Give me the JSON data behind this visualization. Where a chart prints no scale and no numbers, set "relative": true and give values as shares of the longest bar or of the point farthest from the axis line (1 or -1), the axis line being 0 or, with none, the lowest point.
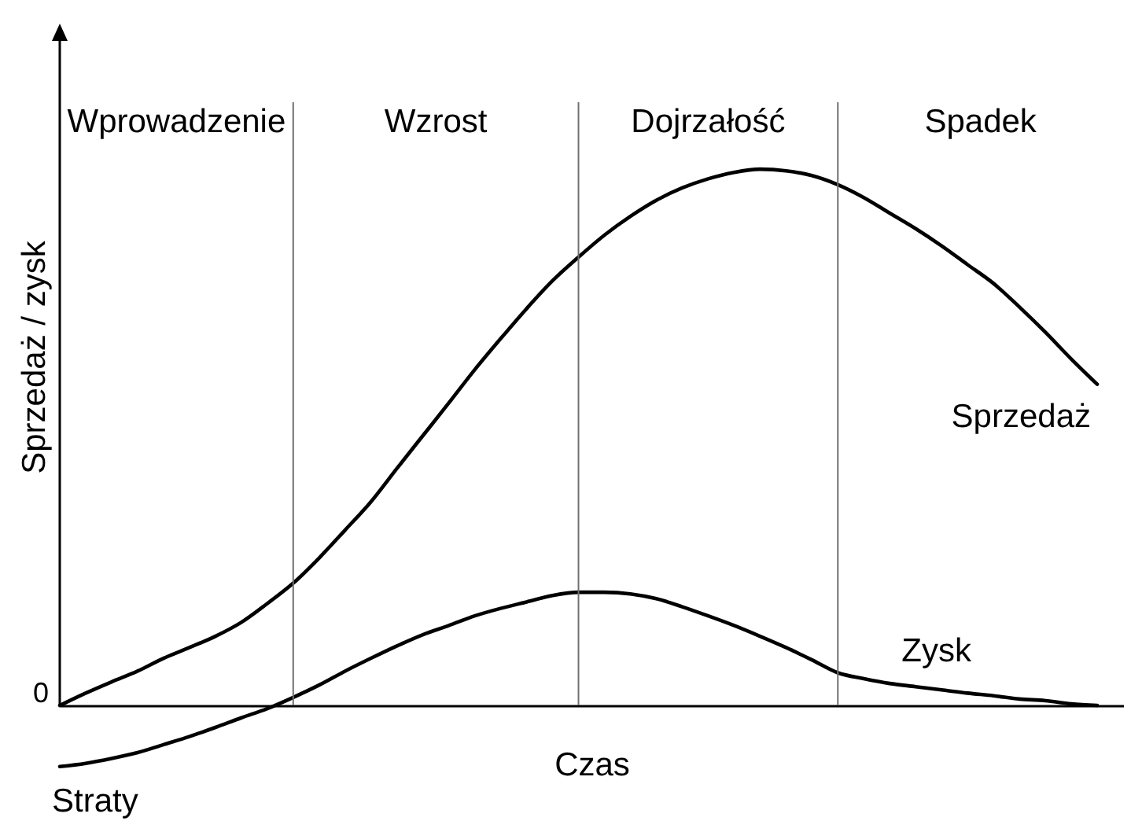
{
  "chart_data": {
    "type": "line",
    "relative": true,
    "xlabel": "Czas",
    "ylabel": "Sprzedaż / zysk",
    "grid": "x",
    "categories": [
      null,
      null,
      null,
      null,
      null,
      null,
      null,
      null,
      null,
      null,
      null,
      null,
      null,
      null,
      null,
      null,
      null,
      null,
      null,
      null,
      null,
      null,
      null,
      null,
      null,
      null,
      null,
      null,
      null,
      null,
      null,
      null,
      null,
      null,
      null,
      null,
      null,
      null,
      null,
      null,
      null,
      null
    ],
    "series": [
      {
        "name": "Sprzedaż",
        "color": "#000000",
        "values": [
          0,
          0.023,
          0.044,
          0.064,
          0.088,
          0.108,
          0.129,
          0.155,
          0.19,
          0.228,
          0.275,
          0.327,
          0.38,
          0.442,
          0.503,
          0.564,
          0.626,
          0.684,
          0.74,
          0.792,
          0.836,
          0.877,
          0.912,
          0.942,
          0.965,
          0.982,
          0.994,
          1,
          0.997,
          0.988,
          0.971,
          0.947,
          0.918,
          0.889,
          0.857,
          0.822,
          0.787,
          0.743,
          0.696,
          0.646,
          0.599,
          null
        ]
      },
      {
        "name": "Zysk",
        "color": "#000000",
        "values": [
          -0.114,
          -0.108,
          -0.099,
          -0.088,
          -0.073,
          -0.058,
          -0.041,
          -0.023,
          -0.006,
          0.015,
          0.038,
          0.064,
          0.088,
          0.111,
          0.132,
          0.149,
          0.167,
          0.181,
          0.193,
          0.205,
          0.211,
          0.211,
          0.208,
          0.199,
          0.184,
          0.167,
          0.149,
          0.129,
          0.108,
          0.085,
          0.061,
          0.05,
          0.041,
          0.035,
          0.029,
          0.023,
          0.018,
          0.012,
          0.009,
          0.003,
          0,
          null
        ]
      }
    ],
    "annotations": [
      "Wprowadzenie",
      "Wzrost",
      "Dojrzałość",
      "Spadek",
      "0",
      "Straty"
    ]
  }
}
